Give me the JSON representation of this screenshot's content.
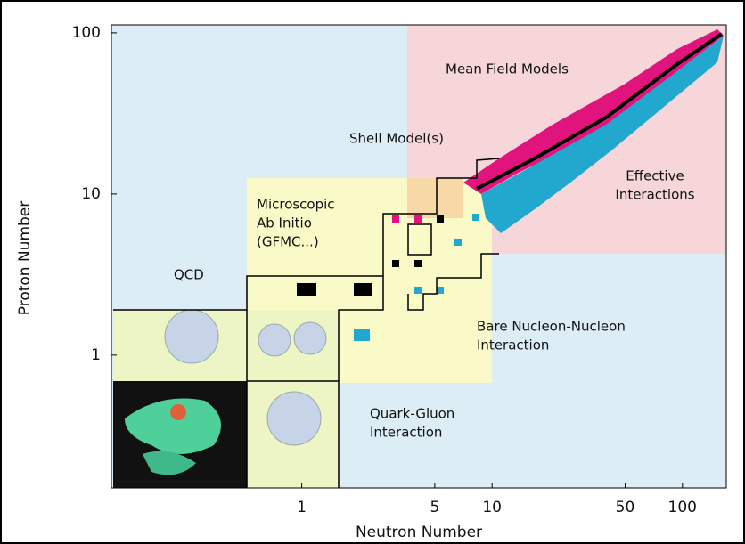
{
  "chart_data": {
    "type": "region-map",
    "xlabel": "Neutron Number",
    "ylabel": "Proton Number",
    "xscale": "log",
    "yscale": "log",
    "xlim": [
      0.1,
      170
    ],
    "ylim": [
      0.15,
      112
    ],
    "xticks": [
      1,
      5,
      10,
      50,
      100
    ],
    "yticks": [
      1,
      10,
      100
    ],
    "annotations": [
      {
        "lines": [
          "Mean Field Models"
        ]
      },
      {
        "lines": [
          "Shell Model(s)"
        ]
      },
      {
        "lines": [
          "Effective",
          "Interactions"
        ]
      },
      {
        "lines": [
          "Microscopic",
          "Ab Initio",
          "(GFMC...)"
        ]
      },
      {
        "lines": [
          "QCD"
        ]
      },
      {
        "lines": [
          "Bare Nucleon-Nucleon",
          "Interaction"
        ]
      },
      {
        "lines": [
          "Quark-Gluon",
          "Interaction"
        ]
      }
    ]
  }
}
